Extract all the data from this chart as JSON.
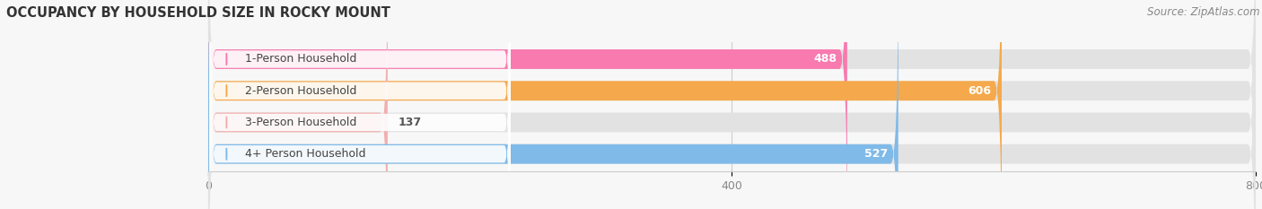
{
  "title": "OCCUPANCY BY HOUSEHOLD SIZE IN ROCKY MOUNT",
  "source": "Source: ZipAtlas.com",
  "categories": [
    "1-Person Household",
    "2-Person Household",
    "3-Person Household",
    "4+ Person Household"
  ],
  "values": [
    488,
    606,
    137,
    527
  ],
  "bar_colors": [
    "#F87AAF",
    "#F5A94C",
    "#F2AEAE",
    "#80BAE8"
  ],
  "xlim": [
    0,
    800
  ],
  "xticks": [
    0,
    400,
    800
  ],
  "background_color": "#f7f7f7",
  "bar_background": "#e2e2e2",
  "title_fontsize": 10.5,
  "source_fontsize": 8.5,
  "label_fontsize": 9,
  "value_fontsize": 9,
  "bar_height": 0.62,
  "figsize": [
    14.06,
    2.33
  ],
  "dpi": 100
}
